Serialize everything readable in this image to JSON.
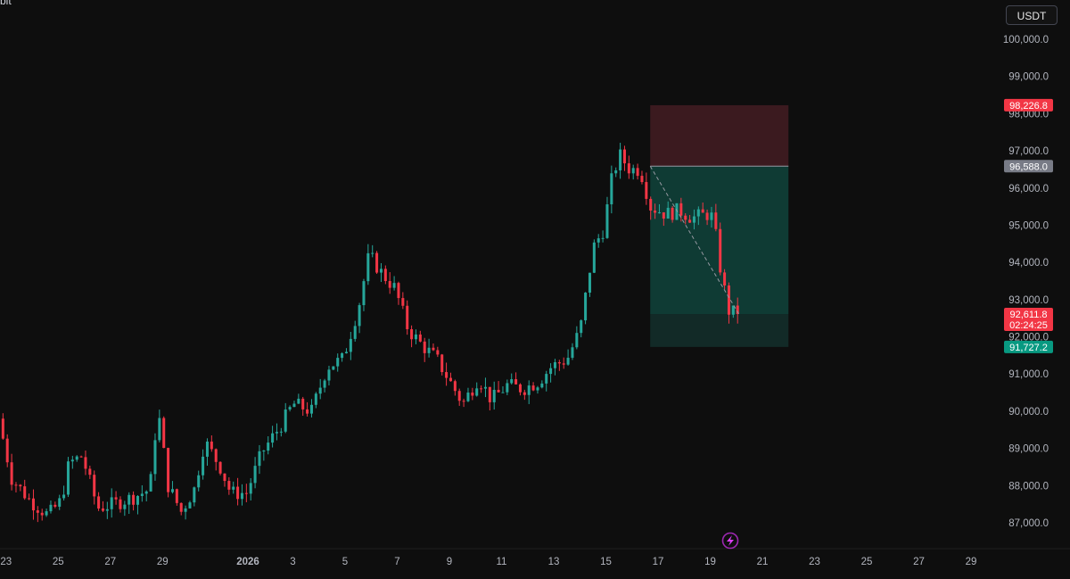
{
  "header": {
    "symbol_fragment": "bit",
    "currency_button": "USDT"
  },
  "icons": {
    "flash": "lightning-bolt-icon"
  },
  "colors": {
    "background": "#0e0e0e",
    "up": "#26a69a",
    "down": "#f23645",
    "target_zone": "#0f3b34",
    "stop_zone": "#3b1a1f",
    "axis_text": "#b2b5be"
  },
  "chart_data": {
    "type": "candlestick",
    "y_range": [
      86300,
      100600
    ],
    "y_ticks": [
      "100,000.0",
      "99,000.0",
      "98,000.0",
      "97,000.0",
      "96,000.0",
      "95,000.0",
      "94,000.0",
      "93,000.0",
      "92,000.0",
      "91,000.0",
      "90,000.0",
      "89,000.0",
      "88,000.0",
      "87,000.0"
    ],
    "y_tick_values": [
      100000,
      99000,
      98000,
      97000,
      96000,
      95000,
      94000,
      93000,
      92000,
      91000,
      90000,
      89000,
      88000,
      87000
    ],
    "x_ticks": [
      "23",
      "25",
      "27",
      "29",
      "2026",
      "3",
      "5",
      "7",
      "9",
      "11",
      "13",
      "15",
      "17",
      "19",
      "21",
      "23",
      "25",
      "27",
      "29"
    ],
    "x_tick_days": [
      -9,
      -7,
      -5,
      -3,
      0,
      2,
      4,
      6,
      8,
      10,
      12,
      14,
      16,
      18,
      20,
      22,
      24,
      26,
      28
    ],
    "candles_per_day": 6,
    "candle_start_day": -9.2,
    "anchors": [
      {
        "d": -9.2,
        "p": 89800
      },
      {
        "d": -8.7,
        "p": 88200
      },
      {
        "d": -8.0,
        "p": 87600
      },
      {
        "d": -7.3,
        "p": 87200
      },
      {
        "d": -6.8,
        "p": 87600
      },
      {
        "d": -6.5,
        "p": 88600
      },
      {
        "d": -6.0,
        "p": 88800
      },
      {
        "d": -5.4,
        "p": 87400
      },
      {
        "d": -4.8,
        "p": 87500
      },
      {
        "d": -4.0,
        "p": 87700
      },
      {
        "d": -3.4,
        "p": 87900
      },
      {
        "d": -3.1,
        "p": 90100
      },
      {
        "d": -2.7,
        "p": 88000
      },
      {
        "d": -2.2,
        "p": 87300
      },
      {
        "d": -1.7,
        "p": 87900
      },
      {
        "d": -1.3,
        "p": 89200
      },
      {
        "d": -0.7,
        "p": 88500
      },
      {
        "d": -0.3,
        "p": 87800
      },
      {
        "d": 0.3,
        "p": 87800
      },
      {
        "d": 0.9,
        "p": 88900
      },
      {
        "d": 1.6,
        "p": 89600
      },
      {
        "d": 2.1,
        "p": 90200
      },
      {
        "d": 2.8,
        "p": 90000
      },
      {
        "d": 3.4,
        "p": 91200
      },
      {
        "d": 4.0,
        "p": 91400
      },
      {
        "d": 4.6,
        "p": 92800
      },
      {
        "d": 5.0,
        "p": 94200
      },
      {
        "d": 5.5,
        "p": 93700
      },
      {
        "d": 6.0,
        "p": 93300
      },
      {
        "d": 6.5,
        "p": 92200
      },
      {
        "d": 7.0,
        "p": 91800
      },
      {
        "d": 7.6,
        "p": 91400
      },
      {
        "d": 8.1,
        "p": 90800
      },
      {
        "d": 8.6,
        "p": 90200
      },
      {
        "d": 9.2,
        "p": 90900
      },
      {
        "d": 9.7,
        "p": 90300
      },
      {
        "d": 10.3,
        "p": 90700
      },
      {
        "d": 10.9,
        "p": 90600
      },
      {
        "d": 11.5,
        "p": 90800
      },
      {
        "d": 12.0,
        "p": 91200
      },
      {
        "d": 12.6,
        "p": 91400
      },
      {
        "d": 13.1,
        "p": 92200
      },
      {
        "d": 13.6,
        "p": 94400
      },
      {
        "d": 14.0,
        "p": 94900
      },
      {
        "d": 14.3,
        "p": 96200
      },
      {
        "d": 14.6,
        "p": 96900
      },
      {
        "d": 15.0,
        "p": 96500
      },
      {
        "d": 15.4,
        "p": 96500
      },
      {
        "d": 15.8,
        "p": 95500
      },
      {
        "d": 16.4,
        "p": 95300
      },
      {
        "d": 16.9,
        "p": 95400
      },
      {
        "d": 17.4,
        "p": 95200
      },
      {
        "d": 18.0,
        "p": 95300
      },
      {
        "d": 18.2,
        "p": 95200
      },
      {
        "d": 18.5,
        "p": 93700
      },
      {
        "d": 18.8,
        "p": 92700
      },
      {
        "d": 19.1,
        "p": 92611.8
      }
    ],
    "position": {
      "type": "short",
      "entry": 96588.0,
      "stop": 98226.8,
      "target": 91727.2,
      "start_day": 15.7,
      "end_day": 21.0,
      "current": 92611.8,
      "current_day": 19.1
    },
    "price_tags": [
      {
        "label": "98,226.8",
        "value": 98226.8,
        "color": "#f23645"
      },
      {
        "label": "96,588.0",
        "value": 96588.0,
        "color": "#787b86"
      },
      {
        "label": "92,611.8",
        "value": 92611.8,
        "color": "#f23645",
        "sublabel": "02:24:25"
      },
      {
        "label": "91,727.2",
        "value": 91727.2,
        "color": "#089981"
      }
    ]
  }
}
